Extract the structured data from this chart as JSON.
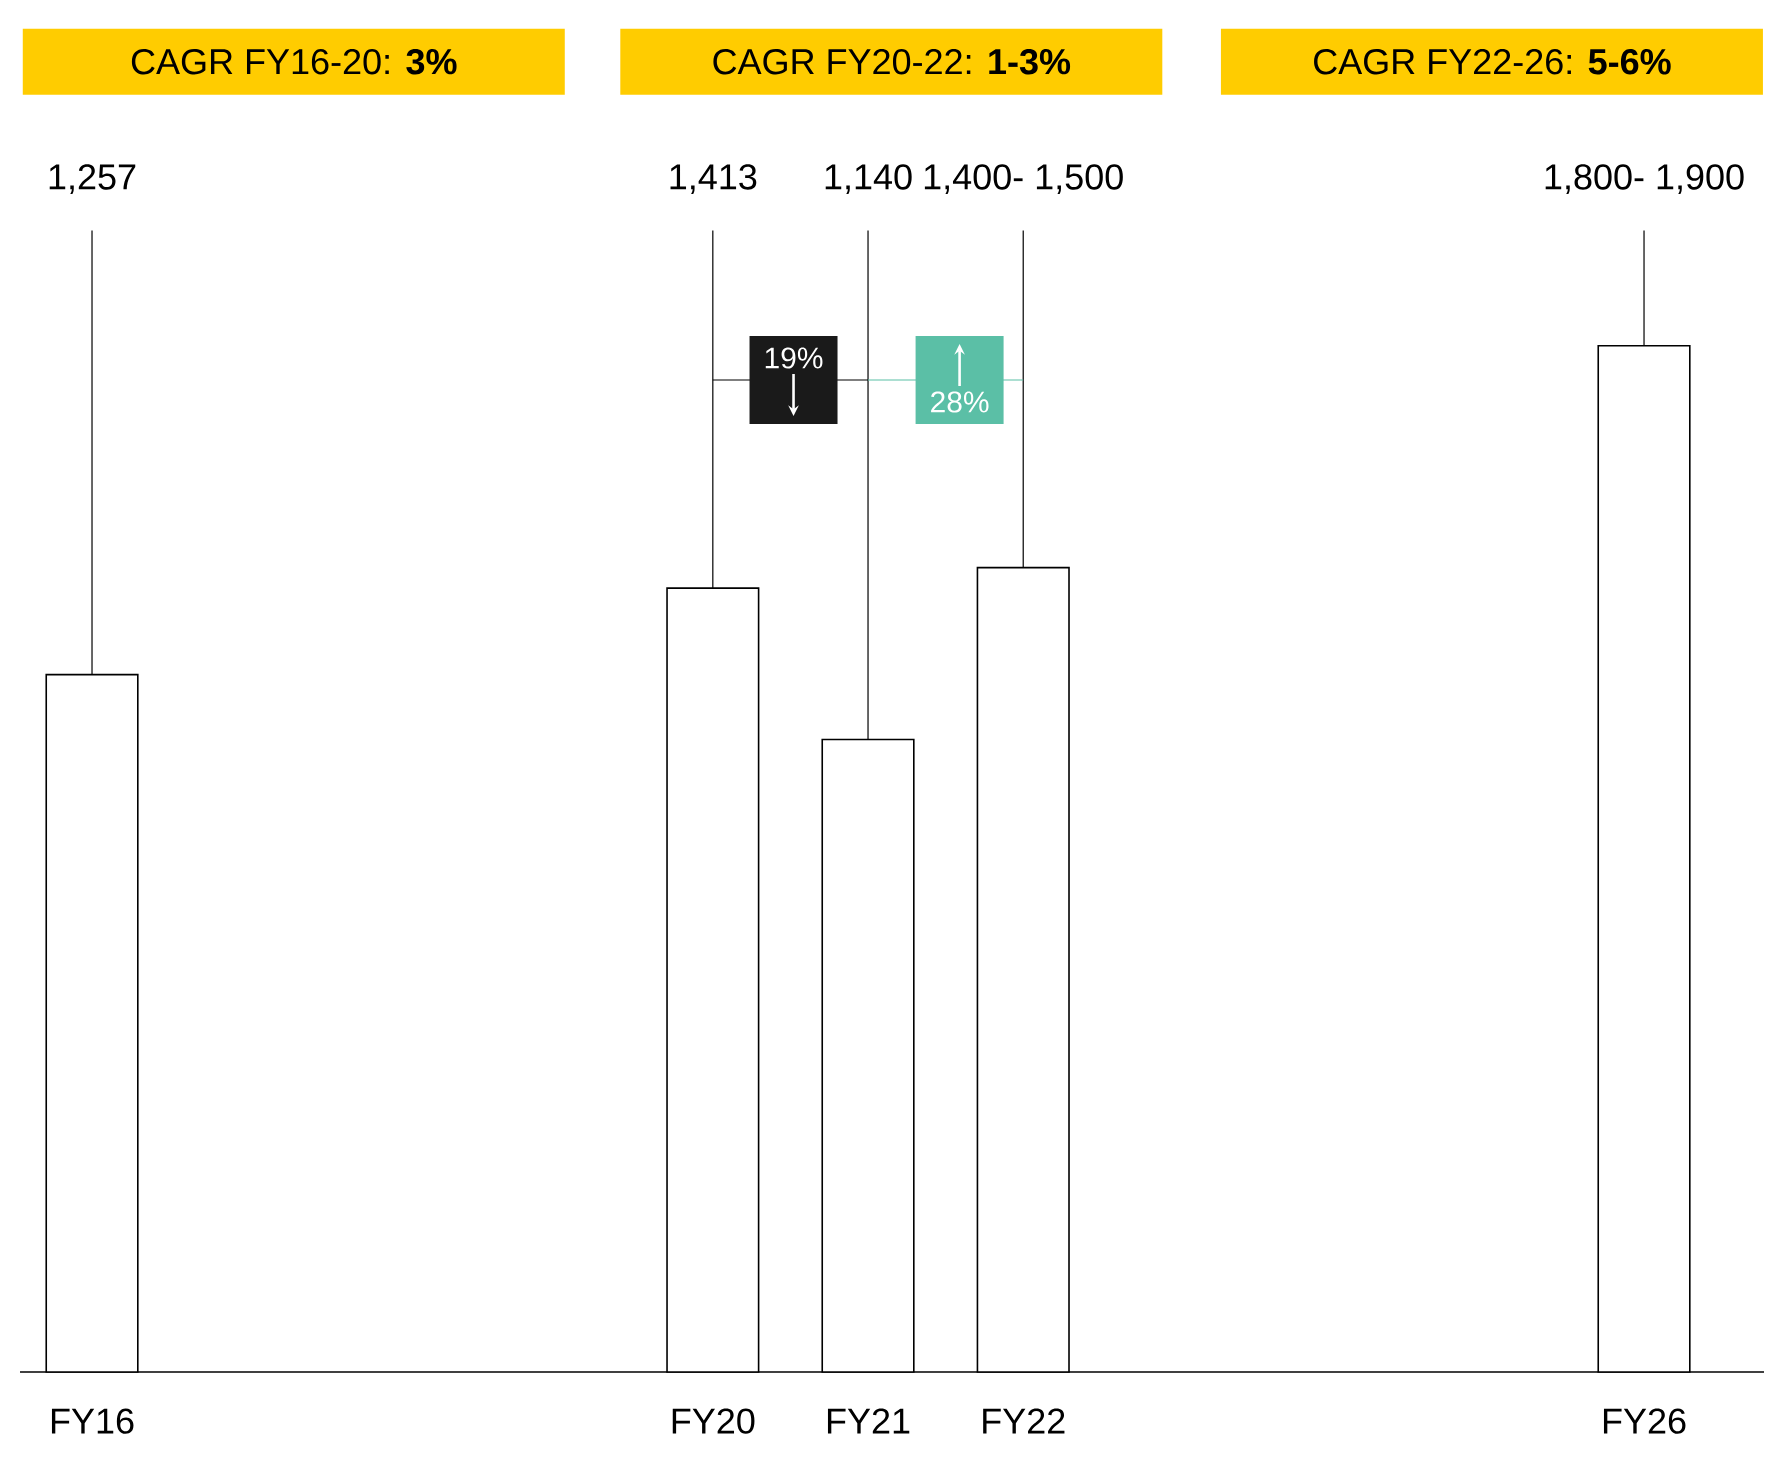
{
  "chart_data": {
    "type": "bar",
    "categories": [
      "FY16",
      null,
      null,
      null,
      "FY20",
      "FY21",
      "FY22",
      null,
      null,
      null,
      "FY26"
    ],
    "values": [
      1257,
      null,
      null,
      null,
      1413,
      1140,
      1450,
      null,
      null,
      null,
      1850
    ],
    "value_labels": [
      "1,257",
      null,
      null,
      null,
      "1,413",
      "1,140",
      "1,400- 1,500",
      null,
      null,
      null,
      "1,800- 1,900"
    ],
    "tick_labels": "x",
    "color": "#ffffff",
    "annotations": [
      "CAGR FY16-20: **3%**",
      "CAGR FY20-22: **1-3%**",
      "CAGR FY22-26: **5-6%**",
      "19%",
      "28%"
    ]
  }
}
